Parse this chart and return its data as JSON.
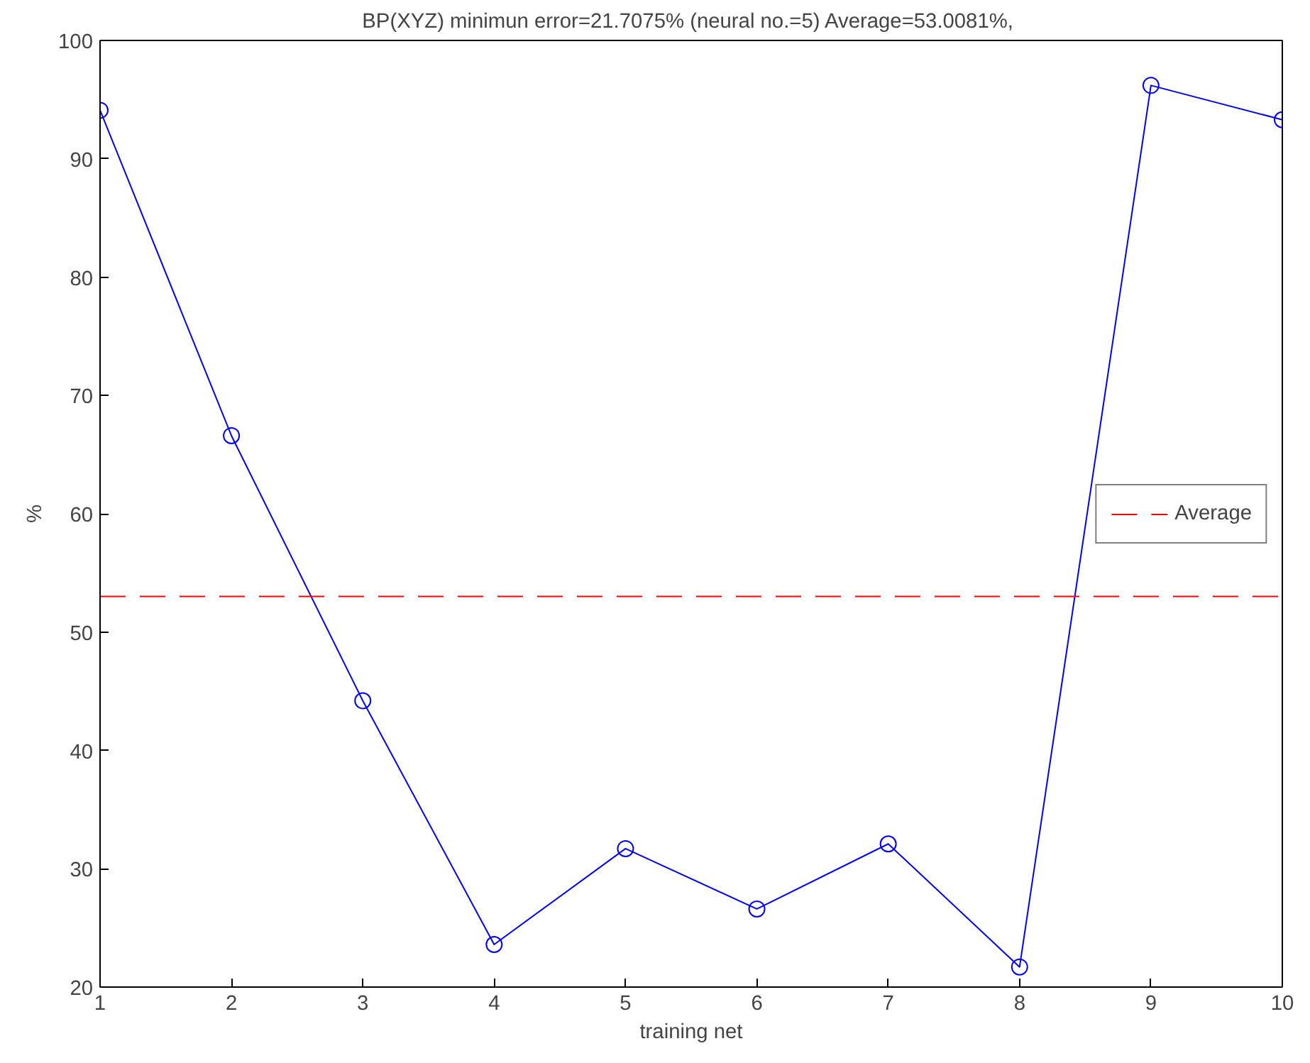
{
  "chart_data": {
    "type": "line",
    "title": "BP(XYZ) minimun error=21.7075% (neural no.=5)  Average=53.0081%,",
    "xlabel": "training net",
    "ylabel": "%",
    "x": [
      1,
      2,
      3,
      4,
      5,
      6,
      7,
      8,
      9,
      10
    ],
    "series": [
      {
        "color": "#0000ff",
        "values": [
          94.1,
          66.6,
          44.2,
          23.6,
          31.7,
          26.6,
          32.1,
          21.7,
          96.2,
          93.3
        ]
      }
    ],
    "marker": "circle",
    "line_style": "solid",
    "xlim": [
      1,
      10
    ],
    "xticks": [
      1,
      2,
      3,
      4,
      5,
      6,
      7,
      8,
      9,
      10
    ],
    "ylim": [
      20,
      100
    ],
    "yticks": [
      20,
      30,
      40,
      50,
      60,
      70,
      80,
      90,
      100
    ],
    "ref_lines": [
      {
        "axis": "y",
        "value": 53.0081,
        "label": "Average",
        "color": "#ff0000",
        "line_style": "dashed"
      }
    ],
    "grid": false,
    "legend": "right"
  }
}
